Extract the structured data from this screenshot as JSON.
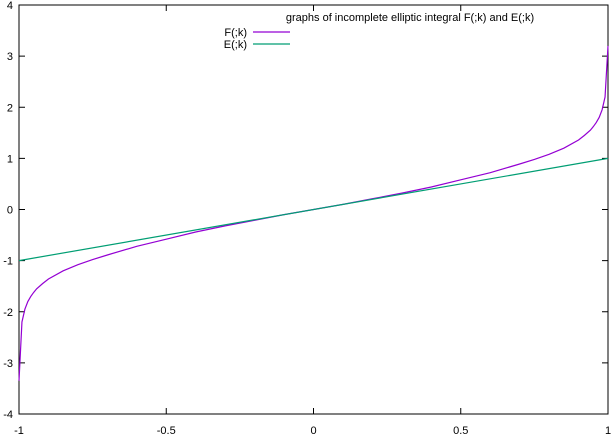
{
  "chart_data": {
    "type": "line",
    "title": "graphs of incomplete elliptic integral F(;k) and E(;k)",
    "xlim": [
      -1,
      1
    ],
    "ylim": [
      -4,
      4
    ],
    "x_ticks": [
      -1,
      -0.5,
      0,
      0.5,
      1
    ],
    "x_tick_labels": [
      "-1",
      "-0.5",
      "0",
      "0.5",
      "1"
    ],
    "y_ticks": [
      -4,
      -3,
      -2,
      -1,
      0,
      1,
      2,
      3,
      4
    ],
    "y_tick_labels": [
      "-4",
      "-3",
      "-2",
      "-1",
      "0",
      "1",
      "2",
      "3",
      "4"
    ],
    "grid": false,
    "legend_position": "top-center",
    "series": [
      {
        "name": "F(;k)",
        "color": "#9400d3",
        "x": [
          -1,
          -0.99,
          -0.98,
          -0.97,
          -0.96,
          -0.95,
          -0.94,
          -0.92,
          -0.9,
          -0.85,
          -0.8,
          -0.75,
          -0.7,
          -0.6,
          -0.5,
          -0.4,
          -0.3,
          -0.2,
          -0.1,
          0,
          0.1,
          0.2,
          0.3,
          0.4,
          0.5,
          0.6,
          0.7,
          0.75,
          0.8,
          0.85,
          0.9,
          0.92,
          0.94,
          0.95,
          0.96,
          0.97,
          0.98,
          0.99,
          1
        ],
        "y": [
          -3.35,
          -2.2,
          -1.95,
          -1.8,
          -1.7,
          -1.62,
          -1.55,
          -1.45,
          -1.36,
          -1.2,
          -1.08,
          -0.98,
          -0.89,
          -0.72,
          -0.58,
          -0.44,
          -0.32,
          -0.21,
          -0.1,
          0,
          0.1,
          0.21,
          0.32,
          0.44,
          0.58,
          0.72,
          0.89,
          0.98,
          1.08,
          1.2,
          1.36,
          1.45,
          1.55,
          1.62,
          1.7,
          1.8,
          1.95,
          2.2,
          3.2
        ]
      },
      {
        "name": "E(;k)",
        "color": "#009e73",
        "x": [
          -1,
          1
        ],
        "y": [
          -1,
          1
        ]
      }
    ]
  }
}
